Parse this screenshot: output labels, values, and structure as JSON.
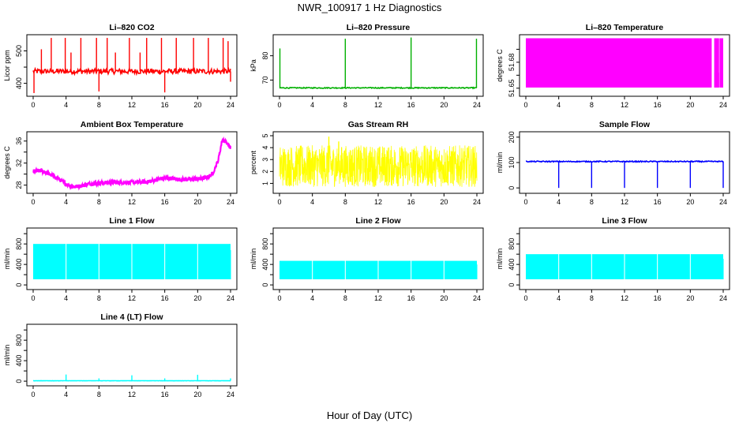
{
  "figure": {
    "title": "NWR_100917  1 Hz Diagnostics",
    "xlabel": "Hour of Day (UTC)"
  },
  "chart_data": [
    {
      "id": "co2",
      "type": "line",
      "title": "Li–820 CO2",
      "ylabel": "Licor ppm",
      "color": "#ff0000",
      "xlim": [
        0,
        24
      ],
      "xticks": [
        0,
        4,
        8,
        12,
        16,
        20,
        24
      ],
      "ylim": [
        365,
        545
      ],
      "yticks": [
        400,
        450,
        500
      ],
      "ytick_labels": [
        "400",
        "",
        "500"
      ],
      "baseline": 437,
      "noise": 8,
      "spikes_up": [
        [
          1.0,
          505
        ],
        [
          2.2,
          540
        ],
        [
          3.9,
          540
        ],
        [
          4.6,
          495
        ],
        [
          5.8,
          540
        ],
        [
          7.7,
          540
        ],
        [
          9.0,
          540
        ],
        [
          10.0,
          495
        ],
        [
          11.7,
          540
        ],
        [
          13.0,
          495
        ],
        [
          13.8,
          540
        ],
        [
          15.6,
          540
        ],
        [
          17.4,
          540
        ],
        [
          19.5,
          540
        ],
        [
          21.3,
          540
        ],
        [
          23.1,
          540
        ],
        [
          23.7,
          530
        ]
      ],
      "spikes_down": [
        [
          0.1,
          370
        ],
        [
          8.0,
          375
        ],
        [
          16.0,
          372
        ],
        [
          24.0,
          405
        ]
      ]
    },
    {
      "id": "pressure",
      "type": "line",
      "title": "Li–820 Pressure",
      "ylabel": "kPa",
      "color": "#00b000",
      "xlim": [
        0,
        24
      ],
      "xticks": [
        0,
        4,
        8,
        12,
        16,
        20,
        24
      ],
      "ylim": [
        64,
        88
      ],
      "yticks": [
        70,
        80
      ],
      "ytick_labels": [
        "70",
        "80"
      ],
      "baseline": 66.8,
      "noise": 0.2,
      "spikes_up": [
        [
          0.05,
          83
        ],
        [
          8.0,
          87
        ],
        [
          16.0,
          87.5
        ],
        [
          23.95,
          87
        ]
      ],
      "spikes_down": []
    },
    {
      "id": "licor_temp",
      "type": "area",
      "title": "Li–820 Temperature",
      "ylabel": "degrees C",
      "color": "#ff00ff",
      "xlim": [
        0,
        24
      ],
      "xticks": [
        0,
        4,
        8,
        12,
        16,
        20,
        24
      ],
      "ylim": [
        51.645,
        51.69
      ],
      "yticks": [
        51.65,
        51.66,
        51.67,
        51.68
      ],
      "ytick_labels": [
        "51.65",
        "",
        "51.68",
        ""
      ],
      "band_low": 51.6505,
      "band_high": 51.6885,
      "gaps": [
        [
          22.6,
          22.9
        ],
        [
          23.5,
          23.55
        ]
      ],
      "gap_top": 51.662
    },
    {
      "id": "ambient",
      "type": "line",
      "title": "Ambient Box Temperature",
      "ylabel": "degrees C",
      "color": "#ff00ff",
      "xlim": [
        0,
        24
      ],
      "xticks": [
        0,
        4,
        8,
        12,
        16,
        20,
        24
      ],
      "ylim": [
        26.8,
        37.4
      ],
      "yticks": [
        28,
        30,
        32,
        34,
        36
      ],
      "ytick_labels": [
        "28",
        "",
        "32",
        "",
        "36"
      ],
      "points": [
        [
          0,
          30.5
        ],
        [
          1,
          30.6
        ],
        [
          2,
          30.0
        ],
        [
          3,
          29.2
        ],
        [
          4,
          28.2
        ],
        [
          5,
          27.7
        ],
        [
          6,
          27.9
        ],
        [
          7,
          28.3
        ],
        [
          8,
          28.4
        ],
        [
          10,
          28.5
        ],
        [
          12,
          28.5
        ],
        [
          14,
          28.6
        ],
        [
          15,
          29.0
        ],
        [
          16,
          29.3
        ],
        [
          17,
          29.2
        ],
        [
          18,
          29.0
        ],
        [
          20,
          29.1
        ],
        [
          21,
          29.3
        ],
        [
          21.8,
          30.0
        ],
        [
          22.5,
          32.5
        ],
        [
          23,
          36.3
        ],
        [
          23.5,
          35.8
        ],
        [
          24,
          34.8
        ]
      ],
      "noise": 0.35
    },
    {
      "id": "rh",
      "type": "line",
      "title": "Gas Stream RH",
      "ylabel": "percent",
      "color": "#ffff00",
      "xlim": [
        0,
        24
      ],
      "xticks": [
        0,
        4,
        8,
        12,
        16,
        20,
        24
      ],
      "ylim": [
        0.3,
        5.2
      ],
      "yticks": [
        1,
        2,
        3,
        4,
        5
      ],
      "ytick_labels": [
        "1",
        "2",
        "3",
        "4",
        "5"
      ],
      "low": 0.7,
      "high": 4.2,
      "peaks": [
        [
          6.0,
          4.9
        ],
        [
          7.2,
          4.5
        ]
      ]
    },
    {
      "id": "sample_flow",
      "type": "line",
      "title": "Sample Flow",
      "ylabel": "ml/min",
      "color": "#0000ff",
      "xlim": [
        0,
        24
      ],
      "xticks": [
        0,
        4,
        8,
        12,
        16,
        20,
        24
      ],
      "ylim": [
        -15,
        215
      ],
      "yticks": [
        0,
        100,
        200
      ],
      "ytick_labels": [
        "0",
        "100",
        "200"
      ],
      "baseline": 104,
      "noise": 2,
      "spikes_down": [
        [
          4.0,
          0
        ],
        [
          8.0,
          0
        ],
        [
          12.0,
          0
        ],
        [
          16.0,
          0
        ],
        [
          20.0,
          0
        ],
        [
          24.0,
          0
        ]
      ]
    },
    {
      "id": "line1",
      "type": "area",
      "title": "Line 1 Flow",
      "ylabel": "ml/min",
      "color": "#00ffff",
      "xlim": [
        0,
        24
      ],
      "xticks": [
        0,
        4,
        8,
        12,
        16,
        20,
        24
      ],
      "ylim": [
        -60,
        1080
      ],
      "yticks": [
        0,
        200,
        400,
        600,
        800,
        1000
      ],
      "ytick_labels": [
        "0",
        "",
        "400",
        "",
        "800",
        ""
      ],
      "band_low": 110,
      "band_high": 800,
      "gaps": [
        [
          3.95,
          4.05
        ],
        [
          7.95,
          8.05
        ],
        [
          11.95,
          12.05
        ],
        [
          15.95,
          16.05
        ],
        [
          19.95,
          20.05
        ]
      ],
      "gap_top": 110
    },
    {
      "id": "line2",
      "type": "area",
      "title": "Line 2 Flow",
      "ylabel": "ml/min",
      "color": "#00ffff",
      "xlim": [
        0,
        24
      ],
      "xticks": [
        0,
        4,
        8,
        12,
        16,
        20,
        24
      ],
      "ylim": [
        -60,
        1080
      ],
      "yticks": [
        0,
        200,
        400,
        600,
        800,
        1000
      ],
      "ytick_labels": [
        "0",
        "",
        "400",
        "",
        "800",
        ""
      ],
      "band_low": 110,
      "band_high": 470,
      "gaps": [
        [
          3.95,
          4.05
        ],
        [
          7.95,
          8.05
        ],
        [
          11.95,
          12.05
        ],
        [
          15.95,
          16.05
        ],
        [
          19.95,
          20.05
        ]
      ],
      "gap_top": 110
    },
    {
      "id": "line3",
      "type": "area",
      "title": "Line 3 Flow",
      "ylabel": "ml/min",
      "color": "#00ffff",
      "xlim": [
        0,
        24
      ],
      "xticks": [
        0,
        4,
        8,
        12,
        16,
        20,
        24
      ],
      "ylim": [
        -60,
        1080
      ],
      "yticks": [
        0,
        200,
        400,
        600,
        800,
        1000
      ],
      "ytick_labels": [
        "0",
        "",
        "400",
        "",
        "800",
        ""
      ],
      "band_low": 110,
      "band_high": 600,
      "gaps": [
        [
          3.95,
          4.05
        ],
        [
          7.95,
          8.05
        ],
        [
          11.95,
          12.05
        ],
        [
          15.95,
          16.05
        ],
        [
          19.95,
          20.05
        ]
      ],
      "gap_top": 110
    },
    {
      "id": "line4",
      "type": "line",
      "title": "Line 4 (LT) Flow",
      "ylabel": "ml/min",
      "color": "#00ffff",
      "xlim": [
        0,
        24
      ],
      "xticks": [
        0,
        4,
        8,
        12,
        16,
        20,
        24
      ],
      "ylim": [
        -60,
        1080
      ],
      "yticks": [
        0,
        200,
        400,
        600,
        800,
        1000
      ],
      "ytick_labels": [
        "0",
        "",
        "400",
        "",
        "800",
        ""
      ],
      "baseline": 8,
      "noise": 2,
      "spikes_up": [
        [
          4.0,
          130
        ],
        [
          8.0,
          55
        ],
        [
          12.0,
          115
        ],
        [
          16.0,
          55
        ],
        [
          20.0,
          125
        ],
        [
          24.0,
          55
        ]
      ]
    }
  ]
}
